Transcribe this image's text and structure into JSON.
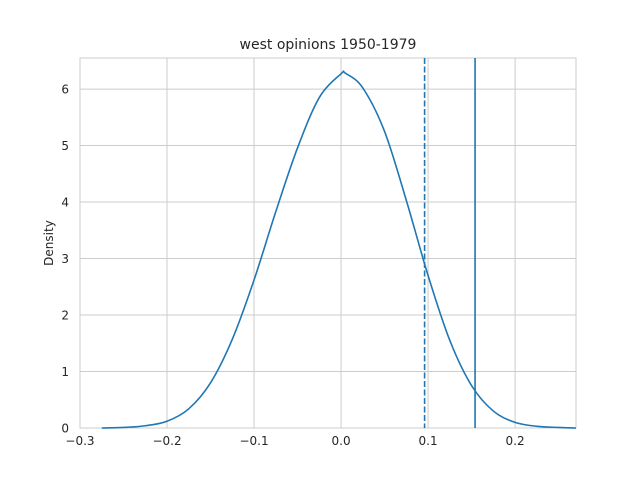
{
  "chart_data": {
    "type": "line",
    "title": "west opinions 1950-1979",
    "xlabel": "",
    "ylabel": "Density",
    "xlim": [
      -0.3,
      0.27
    ],
    "ylim": [
      0,
      6.55
    ],
    "x_ticks": [
      -0.3,
      -0.2,
      -0.1,
      0.0,
      0.1,
      0.2
    ],
    "x_tick_labels": [
      "−0.3",
      "−0.2",
      "−0.1",
      "0.0",
      "0.1",
      "0.2"
    ],
    "y_ticks": [
      0,
      1,
      2,
      3,
      4,
      5,
      6
    ],
    "y_tick_labels": [
      "0",
      "1",
      "2",
      "3",
      "4",
      "5",
      "6"
    ],
    "grid": true,
    "line_color": "#1f77b4",
    "series": [
      {
        "x": [
          -0.275,
          -0.25,
          -0.225,
          -0.2,
          -0.175,
          -0.15,
          -0.125,
          -0.1,
          -0.075,
          -0.05,
          -0.025,
          0.0,
          0.005,
          0.025,
          0.05,
          0.075,
          0.1,
          0.125,
          0.15,
          0.175,
          0.2,
          0.225,
          0.25,
          0.27
        ],
        "y": [
          0.0,
          0.01,
          0.04,
          0.12,
          0.34,
          0.8,
          1.57,
          2.62,
          3.83,
          4.96,
          5.85,
          6.27,
          6.28,
          6.02,
          5.25,
          4.03,
          2.7,
          1.55,
          0.75,
          0.3,
          0.1,
          0.03,
          0.01,
          0.0
        ]
      }
    ],
    "vlines": [
      {
        "x": 0.096,
        "style": "dashed"
      },
      {
        "x": 0.154,
        "style": "solid"
      }
    ]
  }
}
